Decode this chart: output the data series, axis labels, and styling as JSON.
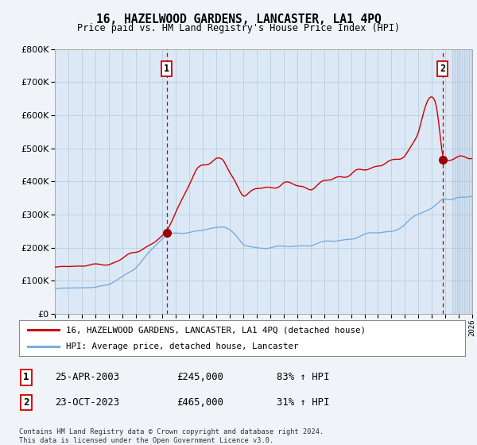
{
  "title": "16, HAZELWOOD GARDENS, LANCASTER, LA1 4PQ",
  "subtitle": "Price paid vs. HM Land Registry's House Price Index (HPI)",
  "legend_line1": "16, HAZELWOOD GARDENS, LANCASTER, LA1 4PQ (detached house)",
  "legend_line2": "HPI: Average price, detached house, Lancaster",
  "sale1_date": "25-APR-2003",
  "sale1_price": 245000,
  "sale1_pct": "83% ↑ HPI",
  "sale2_date": "23-OCT-2023",
  "sale2_price": 465000,
  "sale2_pct": "31% ↑ HPI",
  "footer": "Contains HM Land Registry data © Crown copyright and database right 2024.\nThis data is licensed under the Open Government Licence v3.0.",
  "line_color_red": "#cc0000",
  "line_color_blue": "#7aaddc",
  "marker_color_red": "#990000",
  "dashed_color": "#cc0000",
  "background_color": "#f0f4f8",
  "plot_bg_color": "#dce8f5",
  "grid_color": "#b8cfe0",
  "ylim": [
    0,
    800000
  ],
  "yticks": [
    0,
    100000,
    200000,
    300000,
    400000,
    500000,
    600000,
    700000,
    800000
  ],
  "sale1_x": 2003.31,
  "sale2_x": 2023.81,
  "future_shade_start": 2024.5,
  "xmin": 1995,
  "xmax": 2026
}
